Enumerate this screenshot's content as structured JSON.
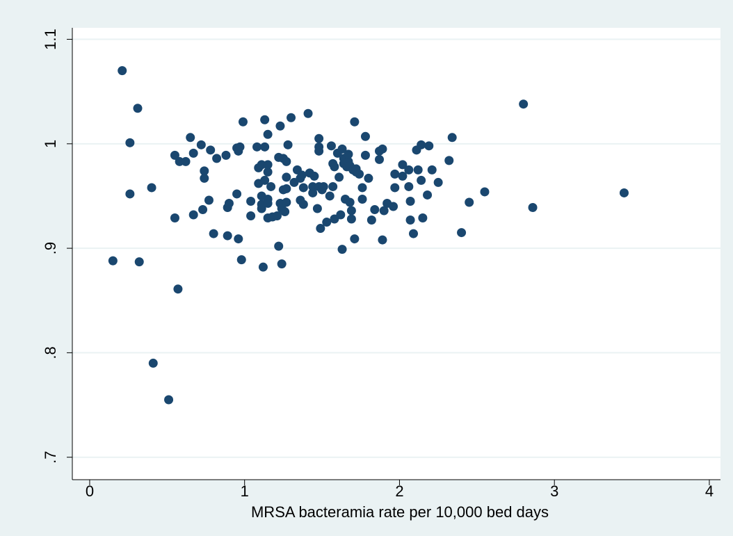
{
  "chart_data": {
    "type": "scatter",
    "xlabel": "MRSA bacteramia rate per 10,000 bed days",
    "color": "#1a476f",
    "grid": true,
    "xlim": [
      -0.112,
      4.072
    ],
    "ylim": [
      0.6785,
      1.111
    ],
    "xticks": [
      0,
      1,
      2,
      3,
      4
    ],
    "yticks": [
      {
        "value": 0.7,
        "label": ".7"
      },
      {
        "value": 0.8,
        "label": ".8"
      },
      {
        "value": 0.9,
        "label": ".9"
      },
      1,
      1.1
    ],
    "x": [
      0.21,
      0.31,
      0.26,
      0.26,
      0.15,
      0.32,
      0.4,
      0.41,
      0.51,
      0.57,
      0.55,
      0.55,
      0.58,
      0.62,
      0.65,
      0.67,
      0.67,
      0.72,
      0.74,
      0.74,
      0.73,
      0.77,
      0.78,
      0.82,
      0.8,
      0.88,
      0.89,
      0.89,
      0.9,
      0.95,
      0.96,
      0.95,
      0.96,
      0.97,
      0.98,
      0.99,
      1.04,
      1.04,
      1.08,
      1.09,
      1.09,
      1.11,
      1.11,
      1.11,
      1.11,
      1.13,
      1.13,
      1.13,
      1.12,
      1.15,
      1.15,
      1.15,
      1.15,
      1.15,
      1.15,
      1.17,
      1.18,
      1.21,
      1.22,
      1.22,
      1.23,
      1.23,
      1.24,
      1.25,
      1.25,
      1.24,
      1.26,
      1.27,
      1.27,
      1.27,
      1.27,
      1.28,
      1.3,
      1.32,
      1.34,
      1.36,
      1.37,
      1.36,
      1.38,
      1.38,
      1.41,
      1.42,
      1.44,
      1.44,
      1.45,
      1.47,
      1.48,
      1.48,
      1.48,
      1.48,
      1.49,
      1.5,
      1.51,
      1.53,
      1.55,
      1.56,
      1.57,
      1.57,
      1.58,
      1.58,
      1.6,
      1.61,
      1.62,
      1.63,
      1.63,
      1.64,
      1.64,
      1.65,
      1.66,
      1.67,
      1.67,
      1.68,
      1.68,
      1.69,
      1.69,
      1.7,
      1.71,
      1.71,
      1.72,
      1.72,
      1.74,
      1.76,
      1.76,
      1.78,
      1.78,
      1.8,
      1.82,
      1.84,
      1.87,
      1.87,
      1.89,
      1.89,
      1.9,
      1.92,
      1.96,
      1.97,
      1.97,
      2.02,
      2.02,
      2.06,
      2.06,
      2.07,
      2.07,
      2.09,
      2.11,
      2.12,
      2.14,
      2.14,
      2.15,
      2.18,
      2.19,
      2.21,
      2.25,
      2.32,
      2.34,
      2.4,
      2.45,
      2.55,
      2.8,
      2.86,
      3.45
    ],
    "values": [
      1.07,
      1.034,
      1.001,
      0.952,
      0.888,
      0.887,
      0.958,
      0.79,
      0.755,
      0.861,
      0.929,
      0.989,
      0.983,
      0.983,
      1.006,
      0.991,
      0.932,
      0.999,
      0.974,
      0.967,
      0.937,
      0.946,
      0.994,
      0.986,
      0.914,
      0.989,
      0.912,
      0.939,
      0.943,
      0.952,
      0.909,
      0.996,
      0.993,
      0.997,
      0.889,
      1.021,
      0.945,
      0.931,
      0.997,
      0.977,
      0.962,
      0.98,
      0.938,
      0.942,
      0.95,
      1.023,
      0.997,
      0.965,
      0.882,
      1.009,
      0.98,
      0.973,
      0.947,
      0.943,
      0.929,
      0.959,
      0.93,
      0.931,
      0.987,
      0.902,
      1.017,
      0.943,
      0.938,
      0.956,
      0.986,
      0.885,
      0.935,
      0.957,
      0.983,
      0.968,
      0.944,
      0.999,
      1.025,
      0.963,
      0.975,
      0.967,
      0.97,
      0.946,
      0.942,
      0.958,
      1.029,
      0.972,
      0.953,
      0.959,
      0.969,
      0.938,
      1.005,
      0.997,
      0.993,
      0.959,
      0.919,
      0.956,
      0.959,
      0.925,
      0.95,
      0.998,
      0.981,
      0.959,
      0.928,
      0.978,
      0.991,
      0.968,
      0.932,
      0.995,
      0.899,
      0.981,
      0.986,
      0.947,
      0.978,
      0.983,
      0.99,
      0.944,
      0.979,
      0.936,
      0.928,
      0.975,
      1.021,
      0.909,
      0.973,
      0.976,
      0.971,
      0.947,
      0.958,
      1.007,
      0.989,
      0.967,
      0.927,
      0.937,
      0.985,
      0.993,
      0.995,
      0.908,
      0.936,
      0.943,
      0.94,
      0.971,
      0.958,
      0.98,
      0.969,
      0.959,
      0.975,
      0.927,
      0.945,
      0.914,
      0.994,
      0.975,
      0.999,
      0.965,
      0.929,
      0.951,
      0.998,
      0.975,
      0.963,
      0.984,
      1.006,
      0.915,
      0.944,
      0.954,
      1.038,
      0.939,
      0.953
    ]
  }
}
